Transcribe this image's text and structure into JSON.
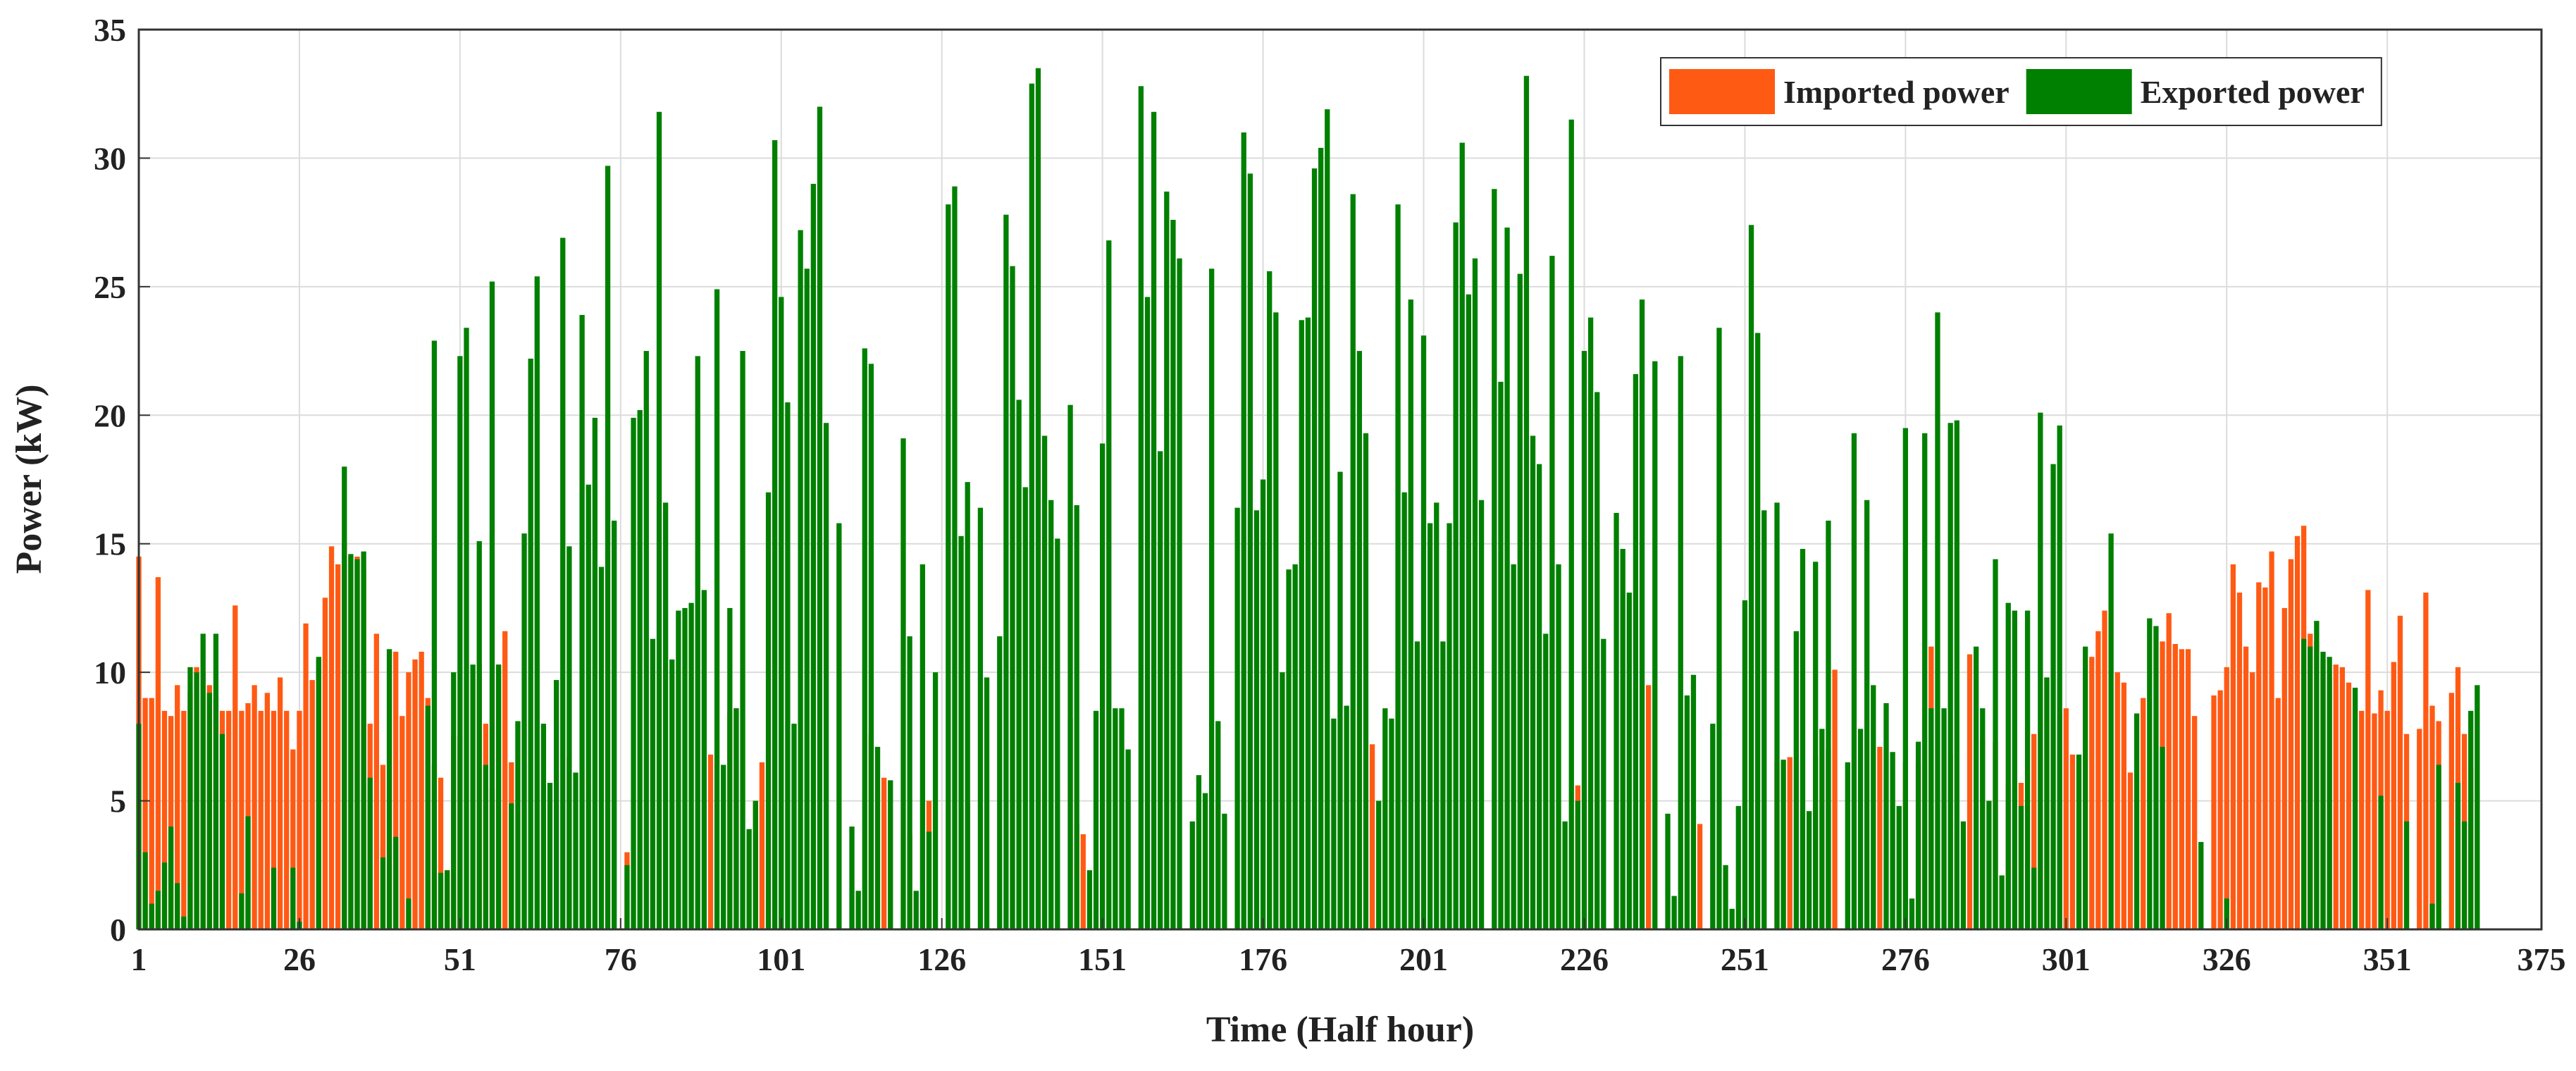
{
  "chart_data": {
    "type": "bar",
    "x_label": "Time (Half hour)",
    "y_label": "Power (kW)",
    "xlim": [
      1,
      375
    ],
    "ylim": [
      0,
      35
    ],
    "xticks": [
      1,
      26,
      51,
      76,
      101,
      126,
      151,
      176,
      201,
      226,
      251,
      276,
      301,
      326,
      351,
      375
    ],
    "yticks": [
      0,
      5,
      10,
      15,
      20,
      25,
      30,
      35
    ],
    "grid": true,
    "legend": "upper right",
    "x": [
      1,
      2,
      3,
      4,
      5,
      6,
      7,
      8,
      9,
      10,
      11,
      12,
      13,
      14,
      15,
      16,
      17,
      18,
      19,
      20,
      21,
      22,
      23,
      24,
      25,
      26,
      27,
      28,
      29,
      30,
      31,
      32,
      33,
      34,
      35,
      36,
      37,
      38,
      39,
      40,
      41,
      42,
      43,
      44,
      45,
      46,
      47,
      48,
      49,
      50,
      51,
      52,
      53,
      54,
      55,
      56,
      57,
      58,
      59,
      60,
      61,
      62,
      63,
      64,
      65,
      66,
      67,
      68,
      69,
      70,
      71,
      72,
      73,
      74,
      75,
      76,
      77,
      78,
      79,
      80,
      81,
      82,
      83,
      84,
      85,
      86,
      87,
      88,
      89,
      90,
      91,
      92,
      93,
      94,
      95,
      96,
      97,
      98,
      99,
      100,
      101,
      102,
      103,
      104,
      105,
      106,
      107,
      108,
      109,
      110,
      111,
      112,
      113,
      114,
      115,
      116,
      117,
      118,
      119,
      120,
      121,
      122,
      123,
      124,
      125,
      126,
      127,
      128,
      129,
      130,
      131,
      132,
      133,
      134,
      135,
      136,
      137,
      138,
      139,
      140,
      141,
      142,
      143,
      144,
      145,
      146,
      147,
      148,
      149,
      150,
      151,
      152,
      153,
      154,
      155,
      156,
      157,
      158,
      159,
      160,
      161,
      162,
      163,
      164,
      165,
      166,
      167,
      168,
      169,
      170,
      171,
      172,
      173,
      174,
      175,
      176,
      177,
      178,
      179,
      180,
      181,
      182,
      183,
      184,
      185,
      186,
      187,
      188,
      189,
      190,
      191,
      192,
      193,
      194,
      195,
      196,
      197,
      198,
      199,
      200,
      201,
      202,
      203,
      204,
      205,
      206,
      207,
      208,
      209,
      210,
      211,
      212,
      213,
      214,
      215,
      216,
      217,
      218,
      219,
      220,
      221,
      222,
      223,
      224,
      225,
      226,
      227,
      228,
      229,
      230,
      231,
      232,
      233,
      234,
      235,
      236,
      237,
      238,
      239,
      240,
      241,
      242,
      243,
      244,
      245,
      246,
      247,
      248,
      249,
      250,
      251,
      252,
      253,
      254,
      255,
      256,
      257,
      258,
      259,
      260,
      261,
      262,
      263,
      264,
      265,
      266,
      267,
      268,
      269,
      270,
      271,
      272,
      273,
      274,
      275,
      276,
      277,
      278,
      279,
      280,
      281,
      282,
      283,
      284,
      285,
      286,
      287,
      288,
      289,
      290,
      291,
      292,
      293,
      294,
      295,
      296,
      297,
      298,
      299,
      300,
      301,
      302,
      303,
      304,
      305,
      306,
      307,
      308,
      309,
      310,
      311,
      312,
      313,
      314,
      315,
      316,
      317,
      318,
      319,
      320,
      321,
      322,
      323,
      324,
      325,
      326,
      327,
      328,
      329,
      330,
      331,
      332,
      333,
      334,
      335,
      336,
      337,
      338,
      339,
      340,
      341,
      342,
      343,
      344,
      345,
      346,
      347,
      348,
      349,
      350,
      351,
      352,
      353,
      354,
      355,
      356,
      357,
      358,
      359,
      360,
      361,
      362,
      363,
      364,
      365
    ],
    "series": [
      {
        "name": "Imported power",
        "color": "#ff5a14",
        "values": [
          14.5,
          9,
          9,
          13.7,
          8.5,
          8.3,
          9.5,
          8.5,
          9.2,
          10.2,
          10,
          9.5,
          9,
          8.5,
          8.5,
          12.6,
          8.5,
          8.8,
          9.5,
          8.5,
          9.2,
          8.5,
          9.8,
          8.5,
          7,
          8.5,
          11.9,
          9.7,
          10.5,
          12.9,
          14.9,
          14.2,
          15,
          14.5,
          14.5,
          14,
          8,
          11.5,
          6.4,
          10.8,
          10.8,
          8.3,
          10,
          10.5,
          10.8,
          9,
          6.4,
          5.9,
          2.3,
          7.5,
          7.5,
          0,
          0,
          10.3,
          8,
          5.5,
          10.3,
          11.6,
          6.5,
          0,
          0,
          0,
          0,
          0,
          0,
          0,
          0,
          6.7,
          0,
          0,
          0,
          0,
          0,
          0,
          0,
          0,
          3,
          0,
          0,
          0,
          0,
          0,
          0,
          0,
          0,
          0,
          0,
          0,
          0,
          6.8,
          0,
          0,
          8.5,
          8.6,
          0,
          0,
          5,
          6.5,
          0,
          0,
          0,
          0,
          0,
          0,
          0,
          0,
          0,
          0,
          0,
          0,
          0,
          0,
          0,
          0,
          7.6,
          0,
          5.9,
          0,
          0,
          0,
          3.7,
          0,
          0,
          5,
          0,
          0,
          0,
          0,
          0,
          4.9,
          0,
          0,
          0,
          0,
          0,
          0,
          0,
          0,
          0,
          0,
          0,
          0,
          0,
          0,
          0,
          8.2,
          4.1,
          3.7,
          0,
          0,
          0,
          0,
          0,
          0,
          0,
          0,
          0,
          0,
          0,
          0,
          0,
          0,
          0,
          0,
          0,
          0,
          0,
          0,
          0,
          0,
          0,
          0,
          0,
          0,
          0,
          0,
          0,
          0,
          0,
          0,
          0,
          0,
          0,
          0,
          0,
          0,
          0,
          0,
          0,
          0,
          0,
          0,
          7.2,
          0,
          0,
          0,
          0,
          0,
          0,
          0,
          0,
          0,
          0,
          0,
          0,
          0,
          0,
          0,
          0,
          0,
          0,
          0,
          0,
          0,
          0,
          0,
          0,
          0,
          0,
          0,
          0,
          0,
          0,
          0,
          5.6,
          0,
          0,
          0,
          0,
          0,
          0,
          0,
          0,
          0,
          0,
          9.5,
          0,
          0,
          0,
          0,
          0,
          0,
          0,
          4.1,
          0,
          0,
          0,
          0,
          0,
          0,
          0,
          0,
          0,
          0,
          0,
          6.5,
          0,
          6.7,
          0,
          0,
          0,
          6.7,
          0,
          7,
          10.1,
          0,
          0,
          0,
          0,
          0,
          0,
          7.1,
          0,
          0,
          0,
          6.5,
          0,
          6.4,
          0,
          11,
          0,
          0,
          6.8,
          0,
          0,
          10.7,
          0,
          7.4,
          0,
          7.3,
          0,
          5.6,
          0,
          5.7,
          0,
          7.6,
          0,
          9.8,
          0,
          8.4,
          8.6,
          6.8,
          0,
          0,
          10.6,
          11.6,
          12.4,
          0,
          10,
          9.6,
          6.1,
          0,
          9,
          0,
          0,
          11.2,
          12.3,
          11.1,
          10.9,
          10.9,
          8.3,
          0,
          0,
          9.1,
          9.3,
          10.2,
          14.2,
          13.1,
          11,
          10,
          13.5,
          13.3,
          14.7,
          9,
          12.5,
          14.4,
          15.3,
          15.7,
          11.5,
          11.2,
          10.5,
          9.8,
          10.3,
          10.2,
          9.6,
          0,
          8.5,
          13.2,
          8.4,
          9.3,
          8.5,
          10.4,
          12.2,
          7.6,
          0,
          7.8,
          13.1,
          8.7,
          8.1,
          0,
          9.2,
          10.2,
          7.6,
          6.3,
          0
        ]
      },
      {
        "name": "Exported power",
        "color": "#008000",
        "values": [
          8,
          3,
          1,
          1.5,
          2.6,
          4,
          1.8,
          0.5,
          10.2,
          10,
          11.5,
          9.2,
          11.5,
          7.6,
          0,
          0,
          1.4,
          4.4,
          0,
          0,
          0,
          2.4,
          0,
          0,
          2.4,
          0.3,
          0,
          0,
          10.6,
          0,
          0,
          0,
          18,
          14.6,
          14.4,
          14.7,
          5.9,
          0,
          2.8,
          10.9,
          3.6,
          0,
          1.2,
          0,
          0,
          8.7,
          22.9,
          2.2,
          2.3,
          10,
          22.3,
          23.4,
          10.3,
          15.1,
          6.4,
          25.2,
          10.3,
          0,
          4.9,
          8.1,
          15.4,
          22.2,
          25.4,
          8,
          5.7,
          9.7,
          26.9,
          14.9,
          6.1,
          23.9,
          17.3,
          19.9,
          14.1,
          29.7,
          15.9,
          0,
          2.5,
          19.9,
          20.2,
          22.5,
          11.3,
          31.8,
          16.6,
          10.5,
          12.4,
          12.5,
          12.7,
          22.3,
          13.2,
          0,
          24.9,
          6.4,
          12.5,
          8.6,
          22.5,
          3.9,
          5,
          0,
          17,
          30.7,
          24.6,
          20.5,
          8,
          27.2,
          25.7,
          29,
          32,
          19.7,
          0,
          15.8,
          0,
          4,
          1.5,
          22.6,
          22,
          7.1,
          0,
          5.8,
          0,
          19.1,
          11.4,
          1.5,
          14.2,
          3.8,
          10,
          0,
          28.2,
          28.9,
          15.3,
          17.4,
          0,
          16.4,
          9.8,
          0,
          11.4,
          27.8,
          25.8,
          20.6,
          17.2,
          32.9,
          33.5,
          19.2,
          16.7,
          15.2,
          0,
          20.4,
          16.5,
          0,
          2.3,
          8.5,
          18.9,
          26.8,
          8.6,
          8.6,
          7,
          0,
          32.8,
          24.6,
          31.8,
          18.6,
          28.7,
          27.6,
          26.1,
          0,
          4.2,
          6,
          5.3,
          25.7,
          8.1,
          4.5,
          0,
          16.4,
          31,
          29.4,
          16.3,
          17.5,
          25.6,
          24,
          10,
          14,
          14.2,
          23.7,
          23.8,
          29.6,
          30.4,
          31.9,
          8.2,
          17.8,
          8.7,
          28.6,
          22.5,
          19.3,
          0,
          5,
          8.6,
          8.2,
          28.2,
          17,
          24.5,
          11.2,
          23.1,
          15.8,
          16.6,
          11.2,
          15.8,
          27.5,
          30.6,
          24.7,
          26.1,
          16.7,
          0,
          28.8,
          21.3,
          27.3,
          14.2,
          25.5,
          33.2,
          19.2,
          18.1,
          11.5,
          26.2,
          14.2,
          4.2,
          31.5,
          5,
          22.5,
          23.8,
          20.9,
          11.3,
          0,
          16.2,
          14.8,
          13.1,
          21.6,
          24.5,
          0,
          22.1,
          0,
          4.5,
          1.3,
          22.3,
          9.1,
          9.9,
          0,
          0,
          8,
          23.4,
          2.5,
          0.8,
          4.8,
          12.8,
          27.4,
          23.2,
          16.3,
          0,
          16.6,
          6.6,
          0,
          11.6,
          14.8,
          4.6,
          14.3,
          7.8,
          15.9,
          0,
          0,
          6.5,
          19.3,
          7.8,
          16.7,
          9.5,
          0,
          8.8,
          6.9,
          4.8,
          19.5,
          1.2,
          7.3,
          19.3,
          8.6,
          24,
          8.6,
          19.7,
          19.8,
          4.2,
          0,
          11,
          8.6,
          5,
          14.4,
          2.1,
          12.7,
          12.4,
          4.8,
          12.4,
          2.4,
          20.1,
          9.8,
          18.1,
          19.6,
          0,
          0,
          6.8,
          11,
          0,
          0,
          0,
          15.4,
          0,
          0,
          0,
          8.4,
          0,
          12.1,
          11.8,
          7.1,
          0,
          0,
          0,
          0,
          0,
          3.4,
          0,
          0,
          0,
          1.2,
          0,
          0,
          0,
          0,
          0,
          0,
          0,
          0,
          0,
          0,
          0,
          11.3,
          11,
          12,
          10.8,
          10.6,
          0,
          0,
          0,
          9.4,
          0,
          0,
          0,
          5.2,
          0,
          0,
          0,
          4.2,
          0,
          0,
          0,
          1,
          6.4,
          0,
          0,
          5.7,
          4.2,
          8.5,
          9.5
        ]
      }
    ]
  }
}
